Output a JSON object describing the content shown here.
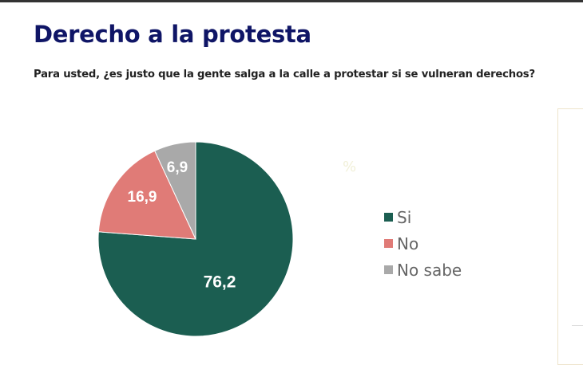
{
  "title": "Derecho a la protesta",
  "subtitle": "Para usted, ¿es justo que la gente salga a la calle a protestar si se vulneran derechos?",
  "unit_mark": "%",
  "chart_data": {
    "type": "pie",
    "title": "Derecho a la protesta",
    "categories": [
      "Si",
      "No",
      "No sabe"
    ],
    "values": [
      76.2,
      16.9,
      6.9
    ],
    "labels": [
      "76,2",
      "16,9",
      "6,9"
    ],
    "colors": [
      "#1b5e51",
      "#e07b77",
      "#a9a9a9"
    ],
    "start": "top",
    "direction": "clockwise",
    "legend_position": "right"
  }
}
